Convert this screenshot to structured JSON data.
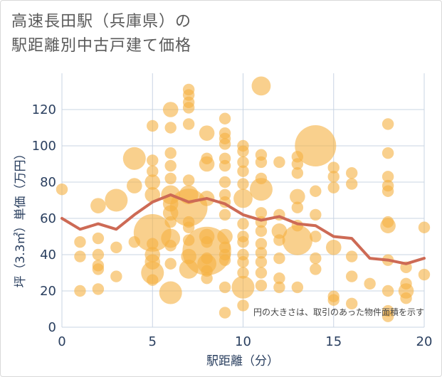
{
  "title_line1": "高速長田駅（兵庫県）の",
  "title_line2": "駅距離別中古戸建て価格",
  "note": "円の大きさは、取引のあった物件面積を示す",
  "chart_data": {
    "type": "scatter",
    "title": "高速長田駅（兵庫県）の駅距離別中古戸建て価格",
    "xlabel": "駅距離（分）",
    "ylabel": "坪（3.3㎡）単価（万円）",
    "xlim": [
      0,
      20
    ],
    "ylim": [
      0,
      140
    ],
    "xticks": [
      0,
      5,
      10,
      15,
      20
    ],
    "yticks": [
      0,
      20,
      40,
      60,
      80,
      100,
      120
    ],
    "colors": {
      "bubble": "#f5b041",
      "line": "#cd6a55",
      "grid": "#c8d4e3"
    },
    "points": [
      {
        "x": 0,
        "y": 76,
        "s": 2
      },
      {
        "x": 1,
        "y": 47,
        "s": 2
      },
      {
        "x": 1,
        "y": 39,
        "s": 2
      },
      {
        "x": 1,
        "y": 20,
        "s": 2
      },
      {
        "x": 2,
        "y": 67,
        "s": 3
      },
      {
        "x": 2,
        "y": 49,
        "s": 2
      },
      {
        "x": 2,
        "y": 40,
        "s": 2
      },
      {
        "x": 2,
        "y": 34,
        "s": 2
      },
      {
        "x": 2,
        "y": 32,
        "s": 2
      },
      {
        "x": 2,
        "y": 21,
        "s": 2
      },
      {
        "x": 3,
        "y": 70,
        "s": 5
      },
      {
        "x": 3,
        "y": 44,
        "s": 2
      },
      {
        "x": 3,
        "y": 28,
        "s": 2
      },
      {
        "x": 4,
        "y": 93,
        "s": 5
      },
      {
        "x": 4,
        "y": 78,
        "s": 3
      },
      {
        "x": 4,
        "y": 47,
        "s": 2
      },
      {
        "x": 5,
        "y": 111,
        "s": 2
      },
      {
        "x": 5,
        "y": 92,
        "s": 2
      },
      {
        "x": 5,
        "y": 86,
        "s": 2
      },
      {
        "x": 5,
        "y": 80,
        "s": 3
      },
      {
        "x": 5,
        "y": 73,
        "s": 3
      },
      {
        "x": 5,
        "y": 52,
        "s": 9
      },
      {
        "x": 5,
        "y": 46,
        "s": 2
      },
      {
        "x": 5,
        "y": 40,
        "s": 3
      },
      {
        "x": 5,
        "y": 36,
        "s": 3
      },
      {
        "x": 5,
        "y": 30,
        "s": 5
      },
      {
        "x": 5,
        "y": 26,
        "s": 2
      },
      {
        "x": 6,
        "y": 120,
        "s": 3
      },
      {
        "x": 6,
        "y": 110,
        "s": 2
      },
      {
        "x": 6,
        "y": 96,
        "s": 2
      },
      {
        "x": 6,
        "y": 89,
        "s": 2
      },
      {
        "x": 6,
        "y": 82,
        "s": 2
      },
      {
        "x": 6,
        "y": 73,
        "s": 4
      },
      {
        "x": 6,
        "y": 68,
        "s": 3
      },
      {
        "x": 6,
        "y": 63,
        "s": 3
      },
      {
        "x": 6,
        "y": 58,
        "s": 2
      },
      {
        "x": 6,
        "y": 49,
        "s": 4
      },
      {
        "x": 6,
        "y": 45,
        "s": 2
      },
      {
        "x": 6,
        "y": 35,
        "s": 2
      },
      {
        "x": 6,
        "y": 19,
        "s": 5
      },
      {
        "x": 7,
        "y": 131,
        "s": 2
      },
      {
        "x": 7,
        "y": 128,
        "s": 2
      },
      {
        "x": 7,
        "y": 124,
        "s": 2
      },
      {
        "x": 7,
        "y": 121,
        "s": 2
      },
      {
        "x": 7,
        "y": 112,
        "s": 2
      },
      {
        "x": 7,
        "y": 81,
        "s": 2
      },
      {
        "x": 7,
        "y": 73,
        "s": 4
      },
      {
        "x": 7,
        "y": 66,
        "s": 9
      },
      {
        "x": 7,
        "y": 58,
        "s": 2
      },
      {
        "x": 7,
        "y": 55,
        "s": 2
      },
      {
        "x": 7,
        "y": 48,
        "s": 2
      },
      {
        "x": 7,
        "y": 39,
        "s": 3
      },
      {
        "x": 7,
        "y": 32,
        "s": 4
      },
      {
        "x": 8,
        "y": 107,
        "s": 3
      },
      {
        "x": 8,
        "y": 93,
        "s": 2
      },
      {
        "x": 8,
        "y": 90,
        "s": 3
      },
      {
        "x": 8,
        "y": 71,
        "s": 3
      },
      {
        "x": 8,
        "y": 50,
        "s": 3
      },
      {
        "x": 8,
        "y": 47,
        "s": 2
      },
      {
        "x": 8,
        "y": 42,
        "s": 12
      },
      {
        "x": 8,
        "y": 38,
        "s": 2
      },
      {
        "x": 8,
        "y": 35,
        "s": 4
      },
      {
        "x": 8,
        "y": 31,
        "s": 2
      },
      {
        "x": 8,
        "y": 27,
        "s": 2
      },
      {
        "x": 9,
        "y": 115,
        "s": 2
      },
      {
        "x": 9,
        "y": 107,
        "s": 2
      },
      {
        "x": 9,
        "y": 104,
        "s": 2
      },
      {
        "x": 9,
        "y": 101,
        "s": 2
      },
      {
        "x": 9,
        "y": 93,
        "s": 2
      },
      {
        "x": 9,
        "y": 89,
        "s": 2
      },
      {
        "x": 9,
        "y": 80,
        "s": 2
      },
      {
        "x": 9,
        "y": 73,
        "s": 2
      },
      {
        "x": 9,
        "y": 69,
        "s": 2
      },
      {
        "x": 9,
        "y": 62,
        "s": 2
      },
      {
        "x": 9,
        "y": 50,
        "s": 3
      },
      {
        "x": 9,
        "y": 44,
        "s": 2
      },
      {
        "x": 9,
        "y": 40,
        "s": 2
      },
      {
        "x": 9,
        "y": 37,
        "s": 2
      },
      {
        "x": 9,
        "y": 22,
        "s": 2
      },
      {
        "x": 9,
        "y": 8,
        "s": 2
      },
      {
        "x": 10,
        "y": 100,
        "s": 2
      },
      {
        "x": 10,
        "y": 97,
        "s": 2
      },
      {
        "x": 10,
        "y": 91,
        "s": 2
      },
      {
        "x": 10,
        "y": 86,
        "s": 2
      },
      {
        "x": 10,
        "y": 79,
        "s": 2
      },
      {
        "x": 10,
        "y": 71,
        "s": 4
      },
      {
        "x": 10,
        "y": 57,
        "s": 2
      },
      {
        "x": 10,
        "y": 50,
        "s": 2
      },
      {
        "x": 10,
        "y": 47,
        "s": 2
      },
      {
        "x": 10,
        "y": 40,
        "s": 2
      },
      {
        "x": 10,
        "y": 36,
        "s": 2
      },
      {
        "x": 10,
        "y": 30,
        "s": 2
      },
      {
        "x": 10,
        "y": 22,
        "s": 5
      },
      {
        "x": 10,
        "y": 12,
        "s": 2
      },
      {
        "x": 11,
        "y": 133,
        "s": 4
      },
      {
        "x": 11,
        "y": 95,
        "s": 2
      },
      {
        "x": 11,
        "y": 91,
        "s": 2
      },
      {
        "x": 11,
        "y": 82,
        "s": 2
      },
      {
        "x": 11,
        "y": 76,
        "s": 5
      },
      {
        "x": 11,
        "y": 63,
        "s": 2
      },
      {
        "x": 11,
        "y": 58,
        "s": 2
      },
      {
        "x": 11,
        "y": 53,
        "s": 2
      },
      {
        "x": 11,
        "y": 46,
        "s": 2
      },
      {
        "x": 11,
        "y": 41,
        "s": 2
      },
      {
        "x": 11,
        "y": 36,
        "s": 2
      },
      {
        "x": 11,
        "y": 30,
        "s": 2
      },
      {
        "x": 11,
        "y": 23,
        "s": 2
      },
      {
        "x": 12,
        "y": 91,
        "s": 2
      },
      {
        "x": 12,
        "y": 62,
        "s": 2
      },
      {
        "x": 12,
        "y": 53,
        "s": 3
      },
      {
        "x": 12,
        "y": 48,
        "s": 2
      },
      {
        "x": 12,
        "y": 38,
        "s": 2
      },
      {
        "x": 12,
        "y": 27,
        "s": 2
      },
      {
        "x": 12,
        "y": 22,
        "s": 2
      },
      {
        "x": 13,
        "y": 94,
        "s": 2
      },
      {
        "x": 13,
        "y": 90,
        "s": 2
      },
      {
        "x": 13,
        "y": 85,
        "s": 2
      },
      {
        "x": 13,
        "y": 72,
        "s": 3
      },
      {
        "x": 13,
        "y": 66,
        "s": 2
      },
      {
        "x": 13,
        "y": 56,
        "s": 2
      },
      {
        "x": 13,
        "y": 48,
        "s": 7
      },
      {
        "x": 13,
        "y": 22,
        "s": 2
      },
      {
        "x": 14,
        "y": 100,
        "s": 10
      },
      {
        "x": 14,
        "y": 75,
        "s": 2
      },
      {
        "x": 14,
        "y": 62,
        "s": 2
      },
      {
        "x": 14,
        "y": 50,
        "s": 2
      },
      {
        "x": 14,
        "y": 38,
        "s": 2
      },
      {
        "x": 14,
        "y": 32,
        "s": 2
      },
      {
        "x": 15,
        "y": 88,
        "s": 2
      },
      {
        "x": 15,
        "y": 83,
        "s": 2
      },
      {
        "x": 15,
        "y": 77,
        "s": 2
      },
      {
        "x": 15,
        "y": 44,
        "s": 3
      },
      {
        "x": 15,
        "y": 17,
        "s": 2
      },
      {
        "x": 15,
        "y": 15,
        "s": 2
      },
      {
        "x": 16,
        "y": 85,
        "s": 2
      },
      {
        "x": 16,
        "y": 79,
        "s": 2
      },
      {
        "x": 16,
        "y": 39,
        "s": 2
      },
      {
        "x": 16,
        "y": 28,
        "s": 2
      },
      {
        "x": 16,
        "y": 13,
        "s": 2
      },
      {
        "x": 17,
        "y": 24,
        "s": 2
      },
      {
        "x": 18,
        "y": 112,
        "s": 2
      },
      {
        "x": 18,
        "y": 96,
        "s": 2
      },
      {
        "x": 18,
        "y": 83,
        "s": 2
      },
      {
        "x": 18,
        "y": 78,
        "s": 2
      },
      {
        "x": 18,
        "y": 75,
        "s": 2
      },
      {
        "x": 18,
        "y": 58,
        "s": 2
      },
      {
        "x": 18,
        "y": 56,
        "s": 3
      },
      {
        "x": 18,
        "y": 37,
        "s": 2
      },
      {
        "x": 18,
        "y": 20,
        "s": 2
      },
      {
        "x": 18,
        "y": 9,
        "s": 2
      },
      {
        "x": 18,
        "y": 6,
        "s": 2
      },
      {
        "x": 19,
        "y": 33,
        "s": 2
      },
      {
        "x": 19,
        "y": 24,
        "s": 2
      },
      {
        "x": 19,
        "y": 20,
        "s": 3
      },
      {
        "x": 19,
        "y": 16,
        "s": 2
      },
      {
        "x": 20,
        "y": 55,
        "s": 2
      },
      {
        "x": 20,
        "y": 29,
        "s": 2
      }
    ],
    "avg_line": {
      "x": [
        0,
        1,
        2,
        3,
        4,
        5,
        6,
        7,
        8,
        9,
        10,
        11,
        12,
        13,
        14,
        15,
        16,
        17,
        18,
        19,
        20
      ],
      "y": [
        60,
        54,
        57,
        54,
        62,
        69,
        73,
        69,
        71,
        68,
        62,
        59,
        61,
        57,
        56,
        50,
        49,
        38,
        37,
        35,
        38
      ]
    }
  }
}
